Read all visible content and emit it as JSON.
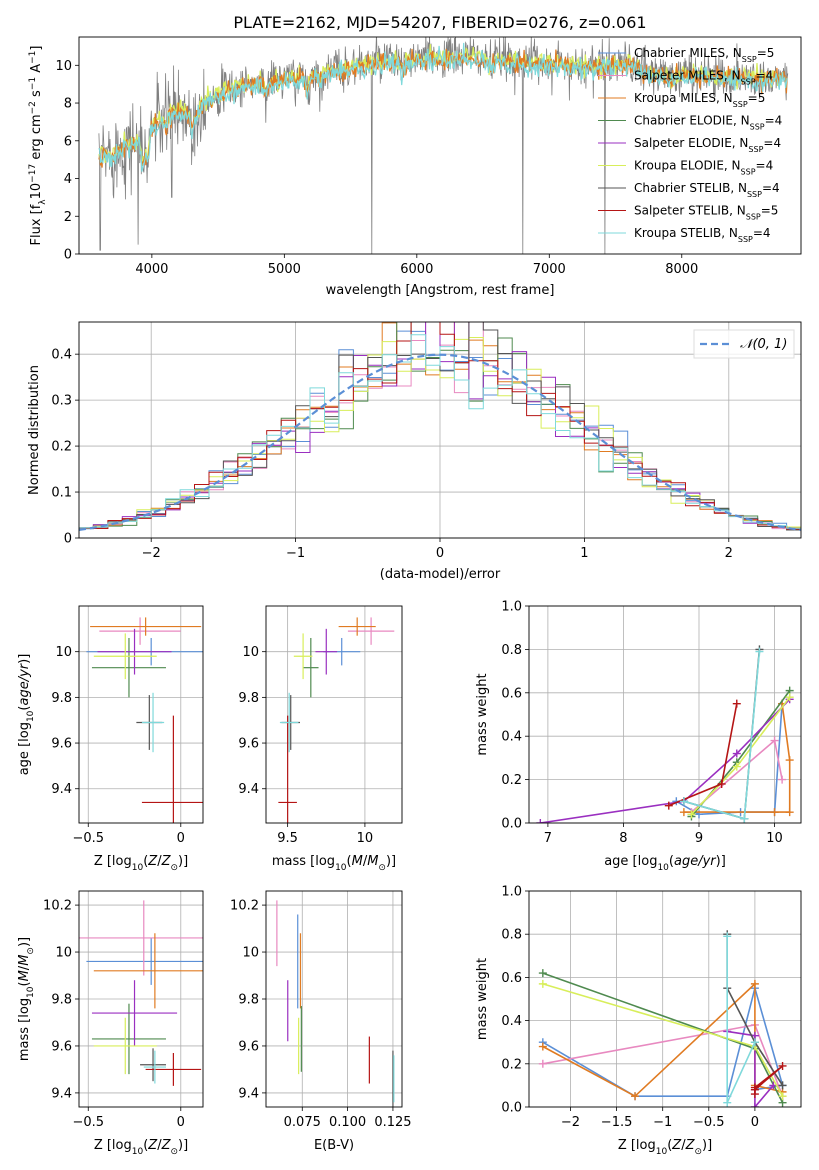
{
  "figure": {
    "title": "PLATE=2162, MJD=54207, FIBERID=0276, z=0.061"
  },
  "colors": {
    "Chabrier MILES": "#5b8fd6",
    "Salpeter MILES": "#e889c0",
    "Kroupa MILES": "#e07b22",
    "Chabrier ELODIE": "#4f8a4f",
    "Salpeter ELODIE": "#9a2fc0",
    "Kroupa ELODIE": "#d8ee5a",
    "Chabrier STELIB": "#555555",
    "Salpeter STELIB": "#b51515",
    "Kroupa STELIB": "#7fd9db",
    "data": "#808080",
    "normal_curve": "#5b8fd6",
    "grid": "#b0b0b0"
  },
  "legend_names": [
    "Chabrier MILES",
    "Salpeter MILES",
    "Kroupa MILES",
    "Chabrier ELODIE",
    "Salpeter ELODIE",
    "Kroupa ELODIE",
    "Chabrier STELIB",
    "Salpeter STELIB",
    "Kroupa STELIB"
  ],
  "chart_data": [
    {
      "id": "spectrum",
      "type": "line",
      "xlabel": "wavelength [Angstrom, rest frame]",
      "ylabel": "Flux [f_λ 10^-17 erg cm^-2 s^-1 A^-1]",
      "xlim": [
        3450,
        8900
      ],
      "ylim": [
        0,
        11.5
      ],
      "xticks": [
        4000,
        5000,
        6000,
        7000,
        8000
      ],
      "yticks": [
        0,
        2,
        4,
        6,
        8,
        10
      ],
      "legend_position": "upper right",
      "legend": [
        {
          "prefix": "Chabrier MILES, N",
          "sub": "SSP",
          "suffix": "=5"
        },
        {
          "prefix": "Salpeter MILES, N",
          "sub": "SSP",
          "suffix": "=4"
        },
        {
          "prefix": "Kroupa MILES, N",
          "sub": "SSP",
          "suffix": "=5"
        },
        {
          "prefix": "Chabrier ELODIE, N",
          "sub": "SSP",
          "suffix": "=4"
        },
        {
          "prefix": "Salpeter ELODIE, N",
          "sub": "SSP",
          "suffix": "=4"
        },
        {
          "prefix": "Kroupa ELODIE, N",
          "sub": "SSP",
          "suffix": "=4"
        },
        {
          "prefix": "Chabrier STELIB, N",
          "sub": "SSP",
          "suffix": "=4"
        },
        {
          "prefix": "Salpeter STELIB, N",
          "sub": "SSP",
          "suffix": "=5"
        },
        {
          "prefix": "Kroupa STELIB, N",
          "sub": "SSP",
          "suffix": "=4"
        }
      ],
      "continuum": [
        [
          3600,
          5.2
        ],
        [
          3700,
          5.3
        ],
        [
          3800,
          5.8
        ],
        [
          3900,
          6.0
        ],
        [
          4000,
          6.8
        ],
        [
          4100,
          7.4
        ],
        [
          4200,
          7.6
        ],
        [
          4300,
          7.6
        ],
        [
          4400,
          8.1
        ],
        [
          4500,
          8.5
        ],
        [
          4600,
          8.8
        ],
        [
          4700,
          9.0
        ],
        [
          4800,
          9.1
        ],
        [
          4900,
          9.2
        ],
        [
          5000,
          9.3
        ],
        [
          5100,
          9.4
        ],
        [
          5200,
          9.4
        ],
        [
          5300,
          9.6
        ],
        [
          5400,
          9.8
        ],
        [
          5500,
          9.9
        ],
        [
          5600,
          10.1
        ],
        [
          5700,
          10.2
        ],
        [
          5800,
          10.2
        ],
        [
          5900,
          10.3
        ],
        [
          6000,
          10.3
        ],
        [
          6100,
          10.4
        ],
        [
          6200,
          10.4
        ],
        [
          6300,
          10.5
        ],
        [
          6400,
          10.5
        ],
        [
          6500,
          10.4
        ],
        [
          6600,
          10.3
        ],
        [
          6700,
          10.3
        ],
        [
          6800,
          10.2
        ],
        [
          6900,
          10.2
        ],
        [
          7000,
          10.1
        ],
        [
          7100,
          10.1
        ],
        [
          7200,
          10.0
        ],
        [
          7300,
          10.0
        ],
        [
          7400,
          10.0
        ],
        [
          7500,
          10.1
        ],
        [
          7600,
          10.1
        ],
        [
          7700,
          9.7
        ],
        [
          7800,
          9.6
        ],
        [
          7900,
          9.4
        ],
        [
          8000,
          9.5
        ],
        [
          8100,
          9.6
        ],
        [
          8200,
          9.5
        ],
        [
          8300,
          9.4
        ],
        [
          8400,
          9.4
        ],
        [
          8500,
          9.4
        ],
        [
          8600,
          9.3
        ],
        [
          8700,
          9.4
        ],
        [
          8800,
          9.4
        ]
      ],
      "data_spikes": [
        [
          5660,
          0
        ],
        [
          6800,
          0
        ],
        [
          7420,
          0
        ],
        [
          3610,
          0.2
        ],
        [
          3895,
          0.5
        ],
        [
          4150,
          3.0
        ]
      ]
    },
    {
      "id": "residuals",
      "type": "histogram",
      "xlabel": "(data-model)/error",
      "ylabel": "Normed distribution",
      "xlim": [
        -2.5,
        2.5
      ],
      "ylim": [
        0,
        0.47
      ],
      "xticks": [
        -2,
        -1,
        0,
        1,
        2
      ],
      "yticks": [
        0,
        0.1,
        0.2,
        0.3,
        0.4
      ],
      "legend_label": "𝒩(0, 1)",
      "legend_position": "upper right"
    },
    {
      "id": "age_vs_Z",
      "type": "scatter",
      "xlabel": "Z [log10(Z/Z⊙)]",
      "ylabel": "age [log10(age/yr)]",
      "xlim": [
        -0.55,
        0.12
      ],
      "ylim": [
        9.25,
        10.2
      ],
      "xticks": [
        -0.5,
        0.0
      ],
      "yticks": [
        9.4,
        9.6,
        9.8,
        10.0
      ],
      "points": [
        {
          "series": "Chabrier MILES",
          "x": -0.16,
          "y": 10.0,
          "xerr": 0.35,
          "yerr": 0.06
        },
        {
          "series": "Salpeter MILES",
          "x": -0.22,
          "y": 10.09,
          "xerr": 0.22,
          "yerr": 0.06
        },
        {
          "series": "Kroupa MILES",
          "x": -0.19,
          "y": 10.11,
          "xerr": 0.3,
          "yerr": 0.04
        },
        {
          "series": "Chabrier ELODIE",
          "x": -0.28,
          "y": 9.93,
          "xerr": 0.2,
          "yerr": 0.13
        },
        {
          "series": "Salpeter ELODIE",
          "x": -0.25,
          "y": 10.0,
          "xerr": 0.2,
          "yerr": 0.1
        },
        {
          "series": "Kroupa ELODIE",
          "x": -0.3,
          "y": 9.98,
          "xerr": 0.17,
          "yerr": 0.1
        },
        {
          "series": "Chabrier STELIB",
          "x": -0.17,
          "y": 9.69,
          "xerr": 0.07,
          "yerr": 0.12
        },
        {
          "series": "Salpeter STELIB",
          "x": -0.04,
          "y": 9.34,
          "xerr": 0.17,
          "yerr": 0.38
        },
        {
          "series": "Kroupa STELIB",
          "x": -0.15,
          "y": 9.69,
          "xerr": 0.06,
          "yerr": 0.13
        }
      ]
    },
    {
      "id": "age_vs_mass",
      "type": "scatter",
      "xlabel": "mass [log10(M/M⊙)]",
      "ylabel": "",
      "xlim": [
        9.36,
        10.24
      ],
      "ylim": [
        9.25,
        10.2
      ],
      "xticks": [
        9.5,
        10.0
      ],
      "yticks": [
        9.4,
        9.6,
        9.8,
        10.0
      ],
      "points": [
        {
          "series": "Chabrier MILES",
          "x": 9.85,
          "y": 10.0,
          "xerr": 0.12,
          "yerr": 0.06
        },
        {
          "series": "Salpeter MILES",
          "x": 10.04,
          "y": 10.09,
          "xerr": 0.15,
          "yerr": 0.06
        },
        {
          "series": "Kroupa MILES",
          "x": 9.95,
          "y": 10.11,
          "xerr": 0.12,
          "yerr": 0.04
        },
        {
          "series": "Chabrier ELODIE",
          "x": 9.65,
          "y": 9.93,
          "xerr": 0.05,
          "yerr": 0.13
        },
        {
          "series": "Salpeter ELODIE",
          "x": 9.75,
          "y": 10.0,
          "xerr": 0.07,
          "yerr": 0.1
        },
        {
          "series": "Kroupa ELODIE",
          "x": 9.6,
          "y": 9.98,
          "xerr": 0.06,
          "yerr": 0.1
        },
        {
          "series": "Chabrier STELIB",
          "x": 9.52,
          "y": 9.69,
          "xerr": 0.06,
          "yerr": 0.12
        },
        {
          "series": "Salpeter STELIB",
          "x": 9.5,
          "y": 9.34,
          "xerr": 0.06,
          "yerr": 0.38
        },
        {
          "series": "Kroupa STELIB",
          "x": 9.51,
          "y": 9.69,
          "xerr": 0.06,
          "yerr": 0.13
        }
      ]
    },
    {
      "id": "weight_vs_age",
      "type": "line",
      "xlabel": "age [log10(age/yr)]",
      "ylabel": "mass weight",
      "xlim": [
        6.75,
        10.35
      ],
      "ylim": [
        0,
        1.0
      ],
      "xticks": [
        7,
        8,
        9,
        10
      ],
      "yticks": [
        0.0,
        0.2,
        0.4,
        0.6,
        0.8,
        1.0
      ],
      "series": [
        {
          "name": "Chabrier MILES",
          "points": [
            [
              8.7,
              0.1
            ],
            [
              9.0,
              0.04
            ],
            [
              9.55,
              0.05
            ],
            [
              10.0,
              0.05
            ],
            [
              10.1,
              0.55
            ]
          ]
        },
        {
          "name": "Salpeter MILES",
          "points": [
            [
              8.9,
              0.05
            ],
            [
              10.0,
              0.38
            ],
            [
              10.1,
              0.2
            ]
          ]
        },
        {
          "name": "Kroupa MILES",
          "points": [
            [
              8.8,
              0.05
            ],
            [
              10.0,
              0.05
            ],
            [
              10.2,
              0.05
            ],
            [
              10.2,
              0.29
            ],
            [
              10.1,
              0.55
            ]
          ]
        },
        {
          "name": "Chabrier ELODIE",
          "points": [
            [
              8.9,
              0.03
            ],
            [
              9.5,
              0.28
            ],
            [
              10.2,
              0.61
            ]
          ]
        },
        {
          "name": "Salpeter ELODIE",
          "points": [
            [
              6.9,
              0.0
            ],
            [
              8.8,
              0.1
            ],
            [
              9.5,
              0.32
            ],
            [
              10.2,
              0.57
            ]
          ]
        },
        {
          "name": "Kroupa ELODIE",
          "points": [
            [
              8.9,
              0.04
            ],
            [
              9.5,
              0.26
            ],
            [
              10.2,
              0.58
            ]
          ]
        },
        {
          "name": "Chabrier STELIB",
          "points": [
            [
              8.8,
              0.1
            ],
            [
              9.6,
              0.02
            ],
            [
              9.8,
              0.8
            ]
          ]
        },
        {
          "name": "Salpeter STELIB",
          "points": [
            [
              8.6,
              0.08
            ],
            [
              9.3,
              0.18
            ],
            [
              9.5,
              0.55
            ]
          ]
        },
        {
          "name": "Kroupa STELIB",
          "points": [
            [
              8.8,
              0.1
            ],
            [
              9.6,
              0.02
            ],
            [
              9.8,
              0.79
            ]
          ]
        }
      ]
    },
    {
      "id": "mass_vs_Z",
      "type": "scatter",
      "xlabel": "Z [log10(Z/Z⊙)]",
      "ylabel": "mass [log10(M/M⊙)]",
      "xlim": [
        -0.55,
        0.12
      ],
      "ylim": [
        9.34,
        10.26
      ],
      "xticks": [
        -0.5,
        0.0
      ],
      "yticks": [
        9.4,
        9.6,
        9.8,
        10.0,
        10.2
      ],
      "points": [
        {
          "series": "Chabrier MILES",
          "x": -0.16,
          "y": 9.96,
          "xerr": 0.35,
          "yerr": 0.1
        },
        {
          "series": "Salpeter MILES",
          "x": -0.2,
          "y": 10.06,
          "xerr": 0.37,
          "yerr": 0.16
        },
        {
          "series": "Kroupa MILES",
          "x": -0.14,
          "y": 9.92,
          "xerr": 0.33,
          "yerr": 0.16
        },
        {
          "series": "Chabrier ELODIE",
          "x": -0.28,
          "y": 9.63,
          "xerr": 0.2,
          "yerr": 0.15
        },
        {
          "series": "Salpeter ELODIE",
          "x": -0.25,
          "y": 9.74,
          "xerr": 0.23,
          "yerr": 0.14
        },
        {
          "series": "Kroupa ELODIE",
          "x": -0.3,
          "y": 9.6,
          "xerr": 0.17,
          "yerr": 0.12
        },
        {
          "series": "Chabrier STELIB",
          "x": -0.15,
          "y": 9.52,
          "xerr": 0.07,
          "yerr": 0.07
        },
        {
          "series": "Salpeter STELIB",
          "x": -0.04,
          "y": 9.5,
          "xerr": 0.15,
          "yerr": 0.07
        },
        {
          "series": "Kroupa STELIB",
          "x": -0.14,
          "y": 9.51,
          "xerr": 0.06,
          "yerr": 0.07
        }
      ]
    },
    {
      "id": "mass_vs_EBV",
      "type": "scatter",
      "xlabel": "E(B-V)",
      "ylabel": "",
      "xlim": [
        0.055,
        0.13
      ],
      "ylim": [
        9.34,
        10.26
      ],
      "xticks": [
        0.075,
        0.1,
        0.125
      ],
      "xtick_labels": [
        "0.075",
        "0.100",
        "0.125"
      ],
      "yticks": [
        9.4,
        9.6,
        9.8,
        10.0,
        10.2
      ],
      "points": [
        {
          "series": "Chabrier MILES",
          "x": 0.0725,
          "y": 9.96,
          "xerr": 0,
          "yerr": 0.2
        },
        {
          "series": "Salpeter MILES",
          "x": 0.061,
          "y": 10.08,
          "xerr": 0,
          "yerr": 0.14
        },
        {
          "series": "Kroupa MILES",
          "x": 0.074,
          "y": 9.92,
          "xerr": 0,
          "yerr": 0.16
        },
        {
          "series": "Chabrier ELODIE",
          "x": 0.0745,
          "y": 9.63,
          "xerr": 0,
          "yerr": 0.14
        },
        {
          "series": "Salpeter ELODIE",
          "x": 0.067,
          "y": 9.75,
          "xerr": 0,
          "yerr": 0.13
        },
        {
          "series": "Kroupa ELODIE",
          "x": 0.073,
          "y": 9.6,
          "xerr": 0,
          "yerr": 0.12
        },
        {
          "series": "Chabrier STELIB",
          "x": 0.125,
          "y": 9.46,
          "xerr": 0,
          "yerr": 0.12
        },
        {
          "series": "Salpeter STELIB",
          "x": 0.112,
          "y": 9.54,
          "xerr": 0,
          "yerr": 0.1
        },
        {
          "series": "Kroupa STELIB",
          "x": 0.1255,
          "y": 9.46,
          "xerr": 0,
          "yerr": 0.1
        }
      ]
    },
    {
      "id": "weight_vs_Z",
      "type": "line",
      "xlabel": "Z [log10(Z/Z⊙)]",
      "ylabel": "mass weight",
      "xlim": [
        -2.45,
        0.5
      ],
      "ylim": [
        0,
        1.0
      ],
      "xticks": [
        -2.0,
        -1.5,
        -1.0,
        -0.5,
        0.0
      ],
      "yticks": [
        0.0,
        0.2,
        0.4,
        0.6,
        0.8,
        1.0
      ],
      "series": [
        {
          "name": "Chabrier MILES",
          "points": [
            [
              -2.3,
              0.3
            ],
            [
              -1.3,
              0.05
            ],
            [
              -0.3,
              0.05
            ],
            [
              0.0,
              0.55
            ],
            [
              0.3,
              0.1
            ],
            [
              0.0,
              0.08
            ]
          ]
        },
        {
          "name": "Salpeter MILES",
          "points": [
            [
              -2.3,
              0.2
            ],
            [
              0.0,
              0.38
            ],
            [
              0.3,
              0.05
            ]
          ]
        },
        {
          "name": "Kroupa MILES",
          "points": [
            [
              -2.3,
              0.28
            ],
            [
              -1.3,
              0.05
            ],
            [
              0.0,
              0.57
            ],
            [
              0.0,
              0.1
            ],
            [
              0.3,
              0.07
            ]
          ]
        },
        {
          "name": "Chabrier ELODIE",
          "points": [
            [
              -2.3,
              0.62
            ],
            [
              0.0,
              0.27
            ],
            [
              0.3,
              0.02
            ]
          ]
        },
        {
          "name": "Salpeter ELODIE",
          "points": [
            [
              -0.3,
              0.35
            ],
            [
              0.0,
              0.33
            ],
            [
              0.0,
              0.0
            ],
            [
              0.2,
              0.1
            ]
          ]
        },
        {
          "name": "Kroupa ELODIE",
          "points": [
            [
              -2.3,
              0.57
            ],
            [
              0.0,
              0.28
            ],
            [
              0.3,
              0.05
            ]
          ]
        },
        {
          "name": "Chabrier STELIB",
          "points": [
            [
              -0.3,
              0.8
            ],
            [
              -0.3,
              0.55
            ],
            [
              0.0,
              0.3
            ],
            [
              0.3,
              0.1
            ]
          ]
        },
        {
          "name": "Salpeter STELIB",
          "points": [
            [
              0.0,
              0.06
            ],
            [
              0.0,
              0.09
            ],
            [
              0.3,
              0.19
            ],
            [
              0.0,
              0.08
            ]
          ]
        },
        {
          "name": "Kroupa STELIB",
          "points": [
            [
              -0.3,
              0.79
            ],
            [
              -0.3,
              0.02
            ],
            [
              0.0,
              0.3
            ]
          ]
        }
      ]
    }
  ]
}
